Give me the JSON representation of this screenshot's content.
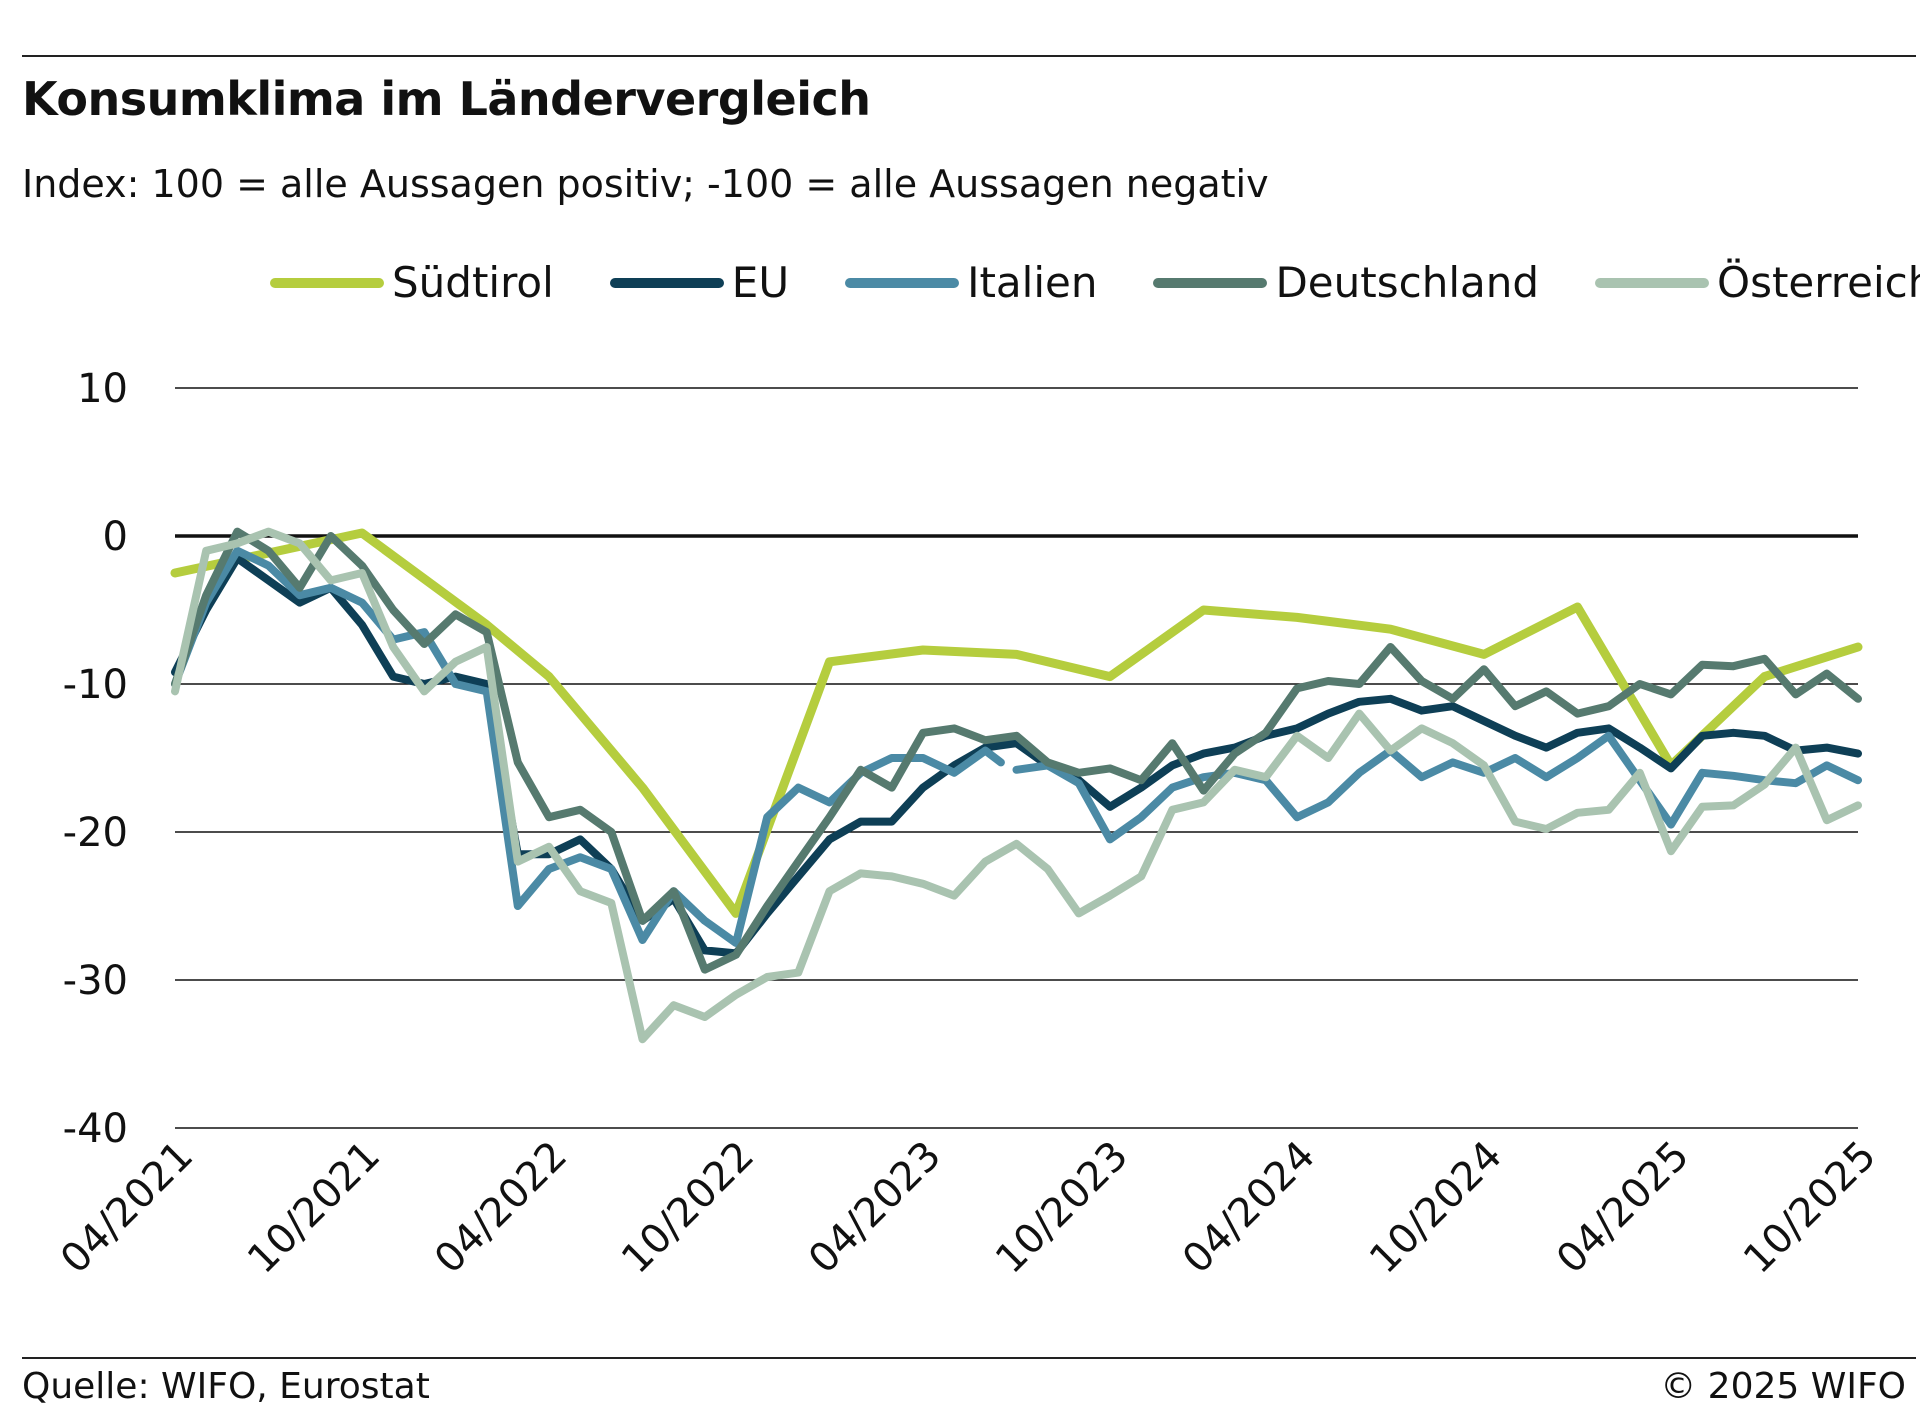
{
  "title": "Konsumklima im Ländervergleich",
  "subtitle": "Index: 100 = alle Aussagen positiv; -100 =  alle Aussagen negativ",
  "source": "Quelle: WIFO, Eurostat",
  "copyright": "© 2025 WIFO",
  "chart_data": {
    "type": "line",
    "ylim": [
      -40,
      10
    ],
    "yticks": [
      10,
      0,
      -10,
      -20,
      -30,
      -40
    ],
    "grid": true,
    "legend_position": "top",
    "x_tick_labels": [
      "04/2021",
      "10/2021",
      "04/2022",
      "10/2022",
      "04/2023",
      "10/2023",
      "04/2024",
      "10/2024",
      "04/2025",
      "10/2025"
    ],
    "x_tick_months": [
      0,
      6,
      12,
      18,
      24,
      30,
      36,
      42,
      48,
      54
    ],
    "x_range_months": [
      0,
      54
    ],
    "series": [
      {
        "name": "Südtirol",
        "color": "#b5cd3e",
        "width": 9,
        "points": [
          [
            0,
            -2.5
          ],
          [
            6,
            0.2
          ],
          [
            10,
            -6
          ],
          [
            12,
            -9.5
          ],
          [
            15,
            -17
          ],
          [
            18,
            -25.5
          ],
          [
            21,
            -8.5
          ],
          [
            24,
            -7.7
          ],
          [
            27,
            -8
          ],
          [
            30,
            -9.5
          ],
          [
            33,
            -5
          ],
          [
            36,
            -5.5
          ],
          [
            39,
            -6.3
          ],
          [
            42,
            -8
          ],
          [
            45,
            -4.8
          ],
          [
            48,
            -15.5
          ],
          [
            51,
            -9.5
          ],
          [
            54,
            -7.5
          ]
        ]
      },
      {
        "name": "EU",
        "color": "#0e3f56",
        "width": 8,
        "points": [
          [
            0,
            -9.2
          ],
          [
            1,
            -5
          ],
          [
            2,
            -1.5
          ],
          [
            3,
            -3
          ],
          [
            4,
            -4.5
          ],
          [
            5,
            -3.5
          ],
          [
            6,
            -6
          ],
          [
            7,
            -9.5
          ],
          [
            8,
            -10
          ],
          [
            9,
            -9.5
          ],
          [
            10,
            -10
          ],
          [
            11,
            -21.5
          ],
          [
            12,
            -21.5
          ],
          [
            13,
            -20.5
          ],
          [
            14,
            -22.5
          ],
          [
            15,
            -26
          ],
          [
            16,
            -24.5
          ],
          [
            17,
            -28
          ],
          [
            18,
            -28.2
          ],
          [
            19,
            -25.5
          ],
          [
            20,
            -23
          ],
          [
            21,
            -20.5
          ],
          [
            22,
            -19.3
          ],
          [
            23,
            -19.3
          ],
          [
            24,
            -17
          ],
          [
            25,
            -15.5
          ],
          [
            26,
            -14.3
          ],
          [
            27,
            -14
          ],
          [
            28,
            -15.5
          ],
          [
            29,
            -16.5
          ],
          [
            30,
            -18.3
          ],
          [
            31,
            -17
          ],
          [
            32,
            -15.5
          ],
          [
            33,
            -14.7
          ],
          [
            34,
            -14.3
          ],
          [
            35,
            -13.5
          ],
          [
            36,
            -13
          ],
          [
            37,
            -12
          ],
          [
            38,
            -11.2
          ],
          [
            39,
            -11
          ],
          [
            40,
            -11.8
          ],
          [
            41,
            -11.5
          ],
          [
            42,
            -12.5
          ],
          [
            43,
            -13.5
          ],
          [
            44,
            -14.3
          ],
          [
            45,
            -13.3
          ],
          [
            46,
            -13
          ],
          [
            47,
            -14.3
          ],
          [
            48,
            -15.7
          ],
          [
            49,
            -13.5
          ],
          [
            50,
            -13.3
          ],
          [
            51,
            -13.5
          ],
          [
            52,
            -14.5
          ],
          [
            53,
            -14.3
          ],
          [
            54,
            -14.7
          ]
        ]
      },
      {
        "name": "Italien",
        "color": "#4b8aa5",
        "width": 8,
        "points": [
          [
            0,
            -10
          ],
          [
            1,
            -4.5
          ],
          [
            2,
            -1
          ],
          [
            3,
            -2
          ],
          [
            4,
            -4
          ],
          [
            5,
            -3.5
          ],
          [
            6,
            -4.5
          ],
          [
            7,
            -7
          ],
          [
            8,
            -6.5
          ],
          [
            9,
            -10
          ],
          [
            10,
            -10.5
          ],
          [
            11,
            -25
          ],
          [
            12,
            -22.5
          ],
          [
            13,
            -21.7
          ],
          [
            14,
            -22.5
          ],
          [
            15,
            -27.3
          ],
          [
            16,
            -24
          ],
          [
            17,
            -26
          ],
          [
            18,
            -27.5
          ],
          [
            19,
            -19
          ],
          [
            20,
            -17
          ],
          [
            21,
            -18
          ],
          [
            22,
            -16
          ],
          [
            23,
            -15
          ],
          [
            24,
            -15
          ],
          [
            25,
            -16
          ],
          [
            26,
            -14.5
          ],
          [
            26.5,
            -15.3
          ],
          null,
          [
            27,
            -15.8
          ],
          [
            28,
            -15.5
          ],
          [
            29,
            -16.7
          ],
          [
            30,
            -20.5
          ],
          [
            31,
            -19
          ],
          [
            32,
            -17
          ],
          [
            33,
            -16.3
          ],
          [
            34,
            -16
          ],
          [
            35,
            -16.5
          ],
          [
            36,
            -19
          ],
          [
            37,
            -18
          ],
          [
            38,
            -16
          ],
          [
            39,
            -14.5
          ],
          [
            40,
            -16.3
          ],
          [
            41,
            -15.3
          ],
          [
            42,
            -16
          ],
          [
            43,
            -15
          ],
          [
            44,
            -16.3
          ],
          [
            45,
            -15
          ],
          [
            46,
            -13.5
          ],
          [
            47,
            -16.5
          ],
          [
            48,
            -19.5
          ],
          [
            49,
            -16
          ],
          [
            50,
            -16.2
          ],
          [
            51,
            -16.5
          ],
          [
            52,
            -16.7
          ],
          [
            53,
            -15.5
          ],
          [
            54,
            -16.5
          ]
        ]
      },
      {
        "name": "Deutschland",
        "color": "#567a6f",
        "width": 8,
        "points": [
          [
            0,
            -10
          ],
          [
            1,
            -4
          ],
          [
            2,
            0.3
          ],
          [
            3,
            -1
          ],
          [
            4,
            -3.5
          ],
          [
            5,
            0
          ],
          [
            6,
            -2
          ],
          [
            7,
            -5
          ],
          [
            8,
            -7.3
          ],
          [
            9,
            -5.3
          ],
          [
            10,
            -6.5
          ],
          [
            11,
            -15.3
          ],
          [
            12,
            -19
          ],
          [
            13,
            -18.5
          ],
          [
            14,
            -20
          ],
          [
            15,
            -26
          ],
          [
            16,
            -24
          ],
          [
            17,
            -29.3
          ],
          [
            18,
            -28.3
          ],
          [
            19,
            -25
          ],
          [
            20,
            -22
          ],
          [
            21,
            -19
          ],
          [
            22,
            -15.8
          ],
          [
            23,
            -17
          ],
          [
            24,
            -13.3
          ],
          [
            25,
            -13
          ],
          [
            26,
            -13.8
          ],
          [
            27,
            -13.5
          ],
          [
            28,
            -15.3
          ],
          [
            29,
            -16
          ],
          [
            30,
            -15.7
          ],
          [
            31,
            -16.5
          ],
          [
            32,
            -14
          ],
          [
            33,
            -17.2
          ],
          [
            34,
            -14.7
          ],
          [
            35,
            -13.3
          ],
          [
            36,
            -10.3
          ],
          [
            37,
            -9.8
          ],
          [
            38,
            -10
          ],
          [
            39,
            -7.5
          ],
          [
            40,
            -9.8
          ],
          [
            41,
            -11
          ],
          [
            42,
            -9
          ],
          [
            43,
            -11.5
          ],
          [
            44,
            -10.5
          ],
          [
            45,
            -12
          ],
          [
            46,
            -11.5
          ],
          [
            47,
            -10
          ],
          [
            48,
            -10.7
          ],
          [
            49,
            -8.7
          ],
          [
            50,
            -8.8
          ],
          [
            51,
            -8.3
          ],
          [
            52,
            -10.7
          ],
          [
            53,
            -9.3
          ],
          [
            54,
            -11
          ]
        ]
      },
      {
        "name": "Österreich",
        "color": "#a9c3b0",
        "width": 8,
        "points": [
          [
            0,
            -10.5
          ],
          [
            1,
            -1
          ],
          [
            2,
            -0.5
          ],
          [
            3,
            0.3
          ],
          [
            4,
            -0.5
          ],
          [
            5,
            -3
          ],
          [
            6,
            -2.5
          ],
          [
            7,
            -7.5
          ],
          [
            8,
            -10.5
          ],
          [
            9,
            -8.5
          ],
          [
            10,
            -7.5
          ],
          [
            11,
            -22
          ],
          [
            12,
            -21
          ],
          [
            13,
            -24
          ],
          [
            14,
            -24.8
          ],
          [
            15,
            -34
          ],
          [
            16,
            -31.7
          ],
          [
            17,
            -32.5
          ],
          [
            18,
            -31
          ],
          [
            19,
            -29.8
          ],
          [
            20,
            -29.5
          ],
          [
            21,
            -24
          ],
          [
            22,
            -22.8
          ],
          [
            23,
            -23
          ],
          [
            24,
            -23.5
          ],
          [
            25,
            -24.3
          ],
          [
            26,
            -22
          ],
          [
            27,
            -20.8
          ],
          [
            28,
            -22.5
          ],
          [
            29,
            -25.5
          ],
          [
            30,
            -24.3
          ],
          [
            31,
            -23
          ],
          [
            32,
            -18.5
          ],
          [
            33,
            -18
          ],
          [
            34,
            -15.8
          ],
          [
            35,
            -16.3
          ],
          [
            36,
            -13.5
          ],
          [
            37,
            -15
          ],
          [
            38,
            -12
          ],
          [
            39,
            -14.5
          ],
          [
            40,
            -13
          ],
          [
            41,
            -14
          ],
          [
            42,
            -15.5
          ],
          [
            43,
            -19.3
          ],
          [
            44,
            -19.8
          ],
          [
            45,
            -18.7
          ],
          [
            46,
            -18.5
          ],
          [
            47,
            -16
          ],
          [
            48,
            -21.3
          ],
          [
            49,
            -18.3
          ],
          [
            50,
            -18.2
          ],
          [
            51,
            -16.8
          ],
          [
            52,
            -14.3
          ],
          [
            53,
            -19.2
          ],
          [
            54,
            -18.2
          ]
        ]
      }
    ]
  }
}
